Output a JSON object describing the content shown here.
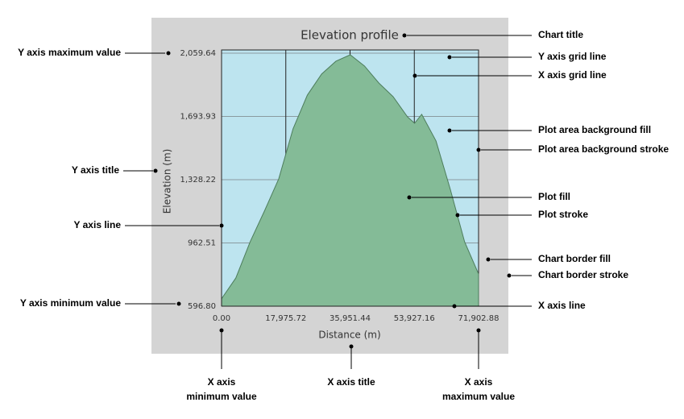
{
  "chart_data": {
    "type": "area",
    "title": "Elevation profile",
    "x_label": "Distance (m)",
    "y_label": "Elevation (m)",
    "x": [
      0,
      4000,
      8000,
      12000,
      16000,
      20000,
      24000,
      28000,
      32000,
      36000,
      40000,
      44000,
      48000,
      52000,
      54000,
      56000,
      60000,
      64000,
      68000,
      71902.88
    ],
    "values": [
      640,
      760,
      969,
      1147,
      1333,
      1622,
      1817,
      1939,
      2013,
      2050,
      1985,
      1887,
      1808,
      1692,
      1654,
      1706,
      1552,
      1272,
      969,
      783
    ],
    "xlim": [
      0,
      71902.88
    ],
    "ylim": [
      596.8,
      2078
    ],
    "xticks": [
      {
        "value": 0,
        "label": "0.00"
      },
      {
        "value": 17975.72,
        "label": "17,975.72"
      },
      {
        "value": 35951.44,
        "label": "35,951.44"
      },
      {
        "value": 53927.16,
        "label": "53,927.16"
      },
      {
        "value": 71902.88,
        "label": "71,902.88"
      }
    ],
    "yticks": [
      {
        "value": 596.8,
        "label": "596.80"
      },
      {
        "value": 962.51,
        "label": "962.51"
      },
      {
        "value": 1328.22,
        "label": "1,328.22"
      },
      {
        "value": 1693.93,
        "label": "1,693.93"
      },
      {
        "value": 2059.64,
        "label": "2,059.64"
      }
    ],
    "grid": true,
    "color": "#84bb97",
    "stroke": "#4d7d5c",
    "plot_background": "#bde4ef",
    "border_fill": "#d4d4d4"
  },
  "annotations": [
    {
      "lines": [
        "Y axis maximum value"
      ]
    },
    {
      "lines": [
        "Y axis title"
      ]
    },
    {
      "lines": [
        "Y axis line"
      ]
    },
    {
      "lines": [
        "Y axis minimum value"
      ]
    },
    {
      "lines": [
        "Chart title"
      ]
    },
    {
      "lines": [
        "Y axis grid line"
      ]
    },
    {
      "lines": [
        "X axis grid line"
      ]
    },
    {
      "lines": [
        "Plot area background fill"
      ]
    },
    {
      "lines": [
        "Plot area background stroke"
      ]
    },
    {
      "lines": [
        "Plot fill"
      ]
    },
    {
      "lines": [
        "Plot stroke"
      ]
    },
    {
      "lines": [
        "Chart border fill"
      ]
    },
    {
      "lines": [
        "Chart border stroke"
      ]
    },
    {
      "lines": [
        "X axis line"
      ]
    },
    {
      "lines": [
        "X axis",
        "minimum value"
      ]
    },
    {
      "lines": [
        "X axis title"
      ]
    },
    {
      "lines": [
        "X axis",
        "maximum value"
      ]
    }
  ]
}
